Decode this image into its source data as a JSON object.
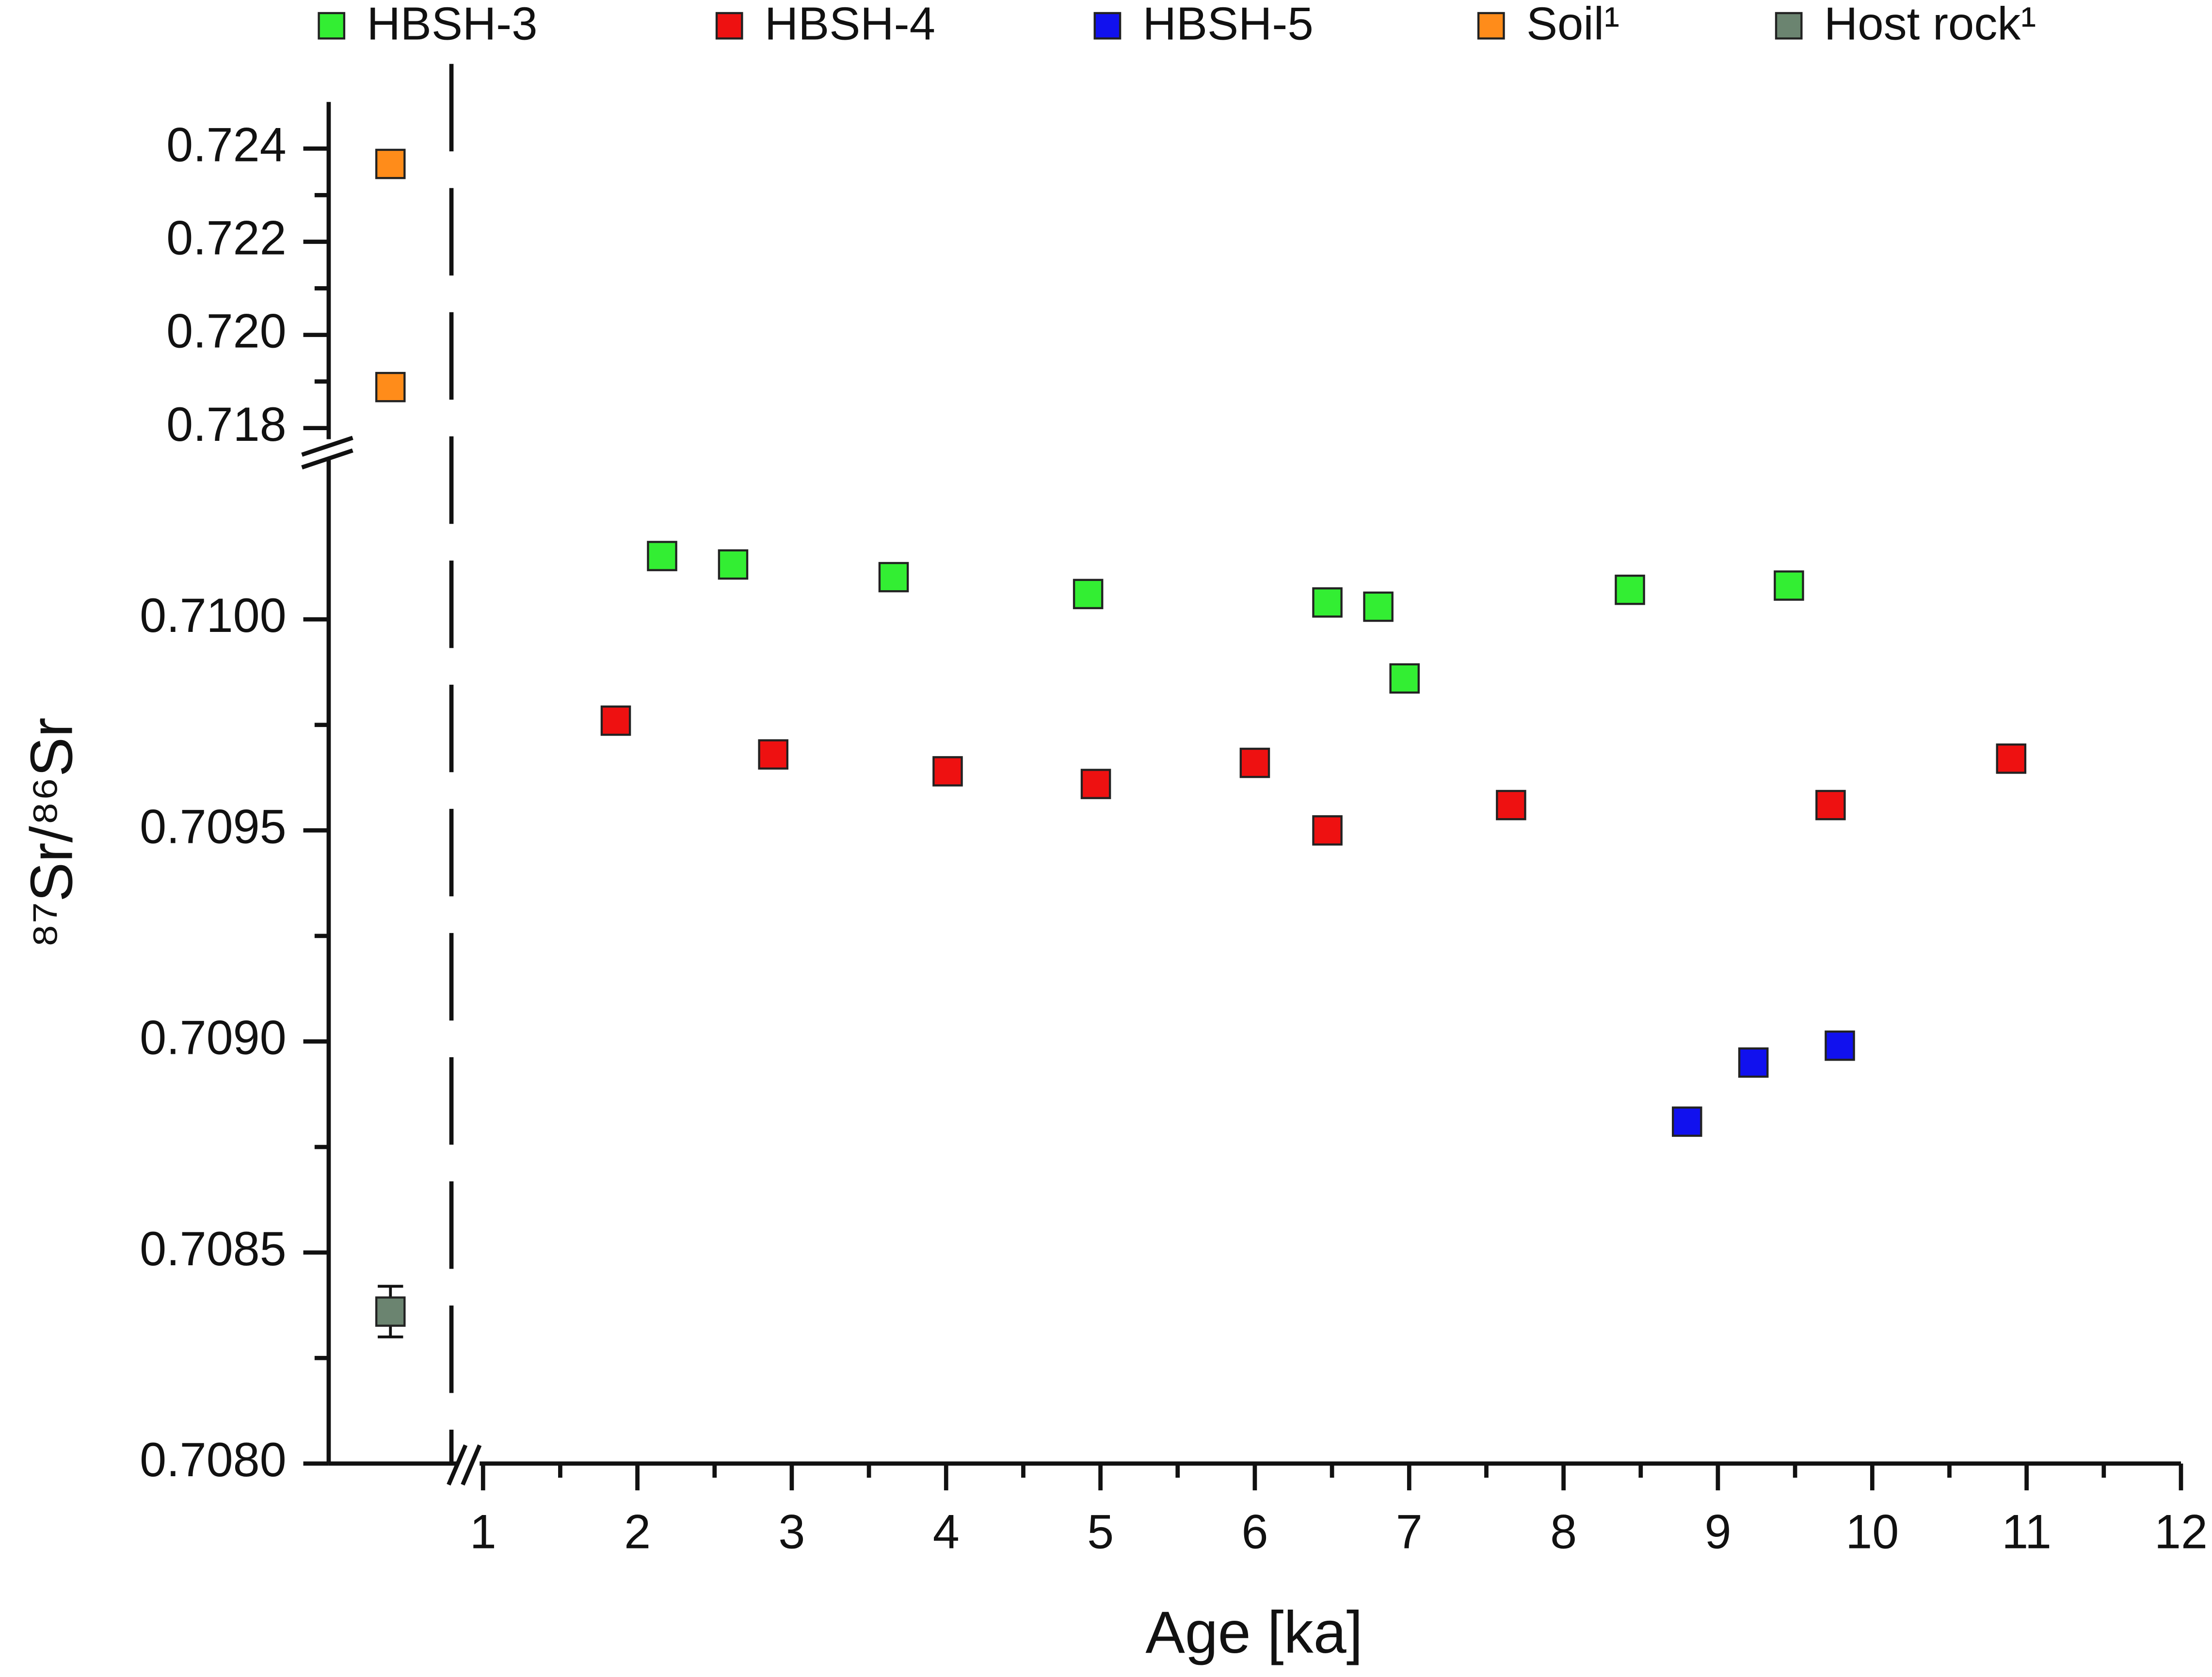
{
  "chart_data": {
    "type": "scatter",
    "xlabel": "Age [ka]",
    "ylabel": "⁸⁷Sr/⁸⁶Sr",
    "xlim": [
      0,
      12
    ],
    "xticks": [
      1,
      2,
      3,
      4,
      5,
      6,
      7,
      8,
      9,
      10,
      11,
      12
    ],
    "y_segments": [
      {
        "ylim": [
          0.708,
          0.71038
        ],
        "yticks": [
          {
            "value": 0.708,
            "label": "0.7080"
          },
          0.7085,
          {
            "value": 0.709,
            "label": "0.7090"
          },
          0.7095,
          {
            "value": 0.71,
            "label": "0.7100"
          }
        ]
      },
      {
        "ylim": [
          0.71764,
          0.725
        ],
        "yticks": [
          0.718,
          {
            "value": 0.72,
            "label": "0.720"
          },
          0.722,
          0.724
        ]
      }
    ],
    "series": [
      {
        "name": "HBSH-3",
        "color": "#33ee33",
        "x": [
          2.16,
          2.62,
          3.66,
          4.92,
          6.47,
          6.8,
          6.97,
          8.43,
          9.46
        ],
        "values": [
          0.71015,
          0.71013,
          0.7101,
          0.71006,
          0.71004,
          0.71003,
          0.70986,
          0.71007,
          0.71008
        ]
      },
      {
        "name": "HBSH-4",
        "color": "#ee1111",
        "x": [
          1.86,
          2.88,
          4.01,
          4.97,
          6.0,
          6.47,
          7.66,
          9.73,
          10.9
        ],
        "values": [
          0.70976,
          0.70968,
          0.70964,
          0.70961,
          0.70966,
          0.7095,
          0.70956,
          0.70956,
          0.70967
        ]
      },
      {
        "name": "HBSH-5",
        "color": "#1111ee",
        "x": [
          8.8,
          9.23,
          9.79
        ],
        "values": [
          0.70881,
          0.70895,
          0.70899
        ]
      },
      {
        "name": "Soil¹",
        "color": "#ff8c1a",
        "x": [
          0.4,
          0.4
        ],
        "values": [
          0.72367,
          0.71888
        ]
      },
      {
        "name": "Host rock¹",
        "color": "#6b8470",
        "x": [
          0.4
        ],
        "values": [
          0.70836
        ],
        "errors": [
          6e-05
        ]
      }
    ]
  }
}
